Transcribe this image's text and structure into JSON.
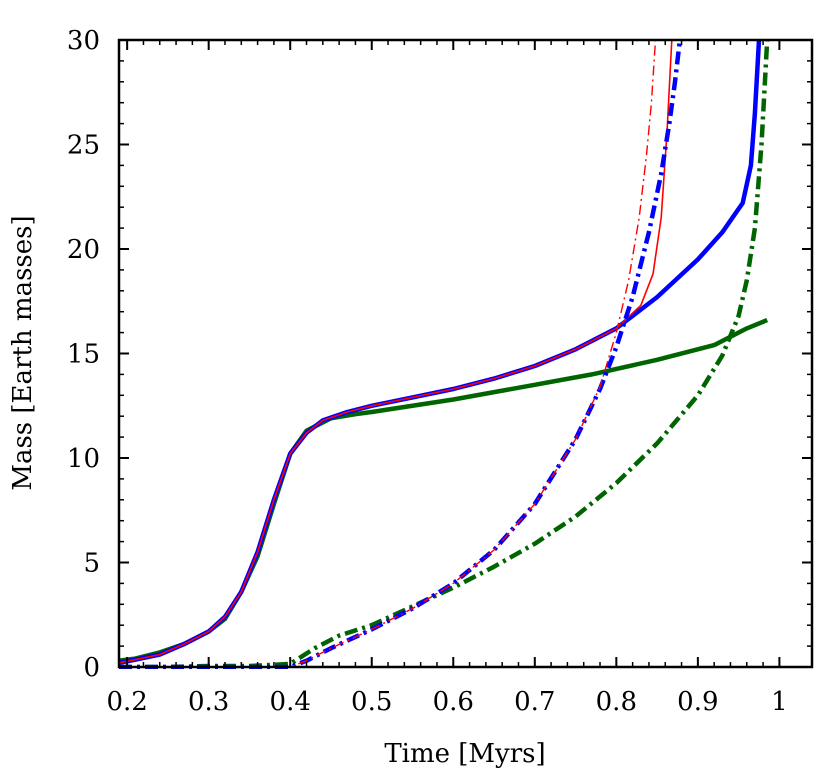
{
  "chart_data": {
    "type": "line",
    "title": "",
    "xlabel": "Time [Myrs]",
    "ylabel": "Mass [Earth masses]",
    "xlim": [
      0.19,
      1.04
    ],
    "ylim": [
      0,
      30
    ],
    "x_ticks": [
      0.2,
      0.3,
      0.4,
      0.5,
      0.6,
      0.7,
      0.8,
      0.9,
      1
    ],
    "x_tick_labels": [
      "0.2",
      "0.3",
      "0.4",
      "0.5",
      "0.6",
      "0.7",
      "0.8",
      "0.9",
      "1"
    ],
    "y_ticks": [
      0,
      5,
      10,
      15,
      20,
      25,
      30
    ],
    "y_tick_labels": [
      "0",
      "5",
      "10",
      "15",
      "20",
      "25",
      "30"
    ],
    "grid": false,
    "series": [
      {
        "style": "solid-thick",
        "color": "#006400",
        "x": [
          0.19,
          0.21,
          0.24,
          0.27,
          0.3,
          0.32,
          0.34,
          0.36,
          0.38,
          0.4,
          0.42,
          0.45,
          0.48,
          0.5,
          0.6,
          0.7,
          0.77,
          0.85,
          0.92,
          0.96,
          0.985
        ],
        "y": [
          0.3,
          0.4,
          0.7,
          1.1,
          1.7,
          2.3,
          3.6,
          5.3,
          7.8,
          10.2,
          11.3,
          11.9,
          12.1,
          12.2,
          12.8,
          13.5,
          14.0,
          14.7,
          15.4,
          16.2,
          16.6
        ]
      },
      {
        "style": "solid-thick",
        "color": "#0000ff",
        "x": [
          0.19,
          0.21,
          0.24,
          0.27,
          0.3,
          0.32,
          0.34,
          0.36,
          0.38,
          0.4,
          0.42,
          0.44,
          0.47,
          0.5,
          0.55,
          0.6,
          0.65,
          0.7,
          0.75,
          0.8,
          0.85,
          0.9,
          0.93,
          0.955,
          0.965,
          0.97,
          0.975
        ],
        "y": [
          0.2,
          0.35,
          0.6,
          1.1,
          1.7,
          2.4,
          3.6,
          5.5,
          8.0,
          10.2,
          11.2,
          11.8,
          12.2,
          12.5,
          12.9,
          13.3,
          13.8,
          14.4,
          15.2,
          16.2,
          17.7,
          19.5,
          20.8,
          22.2,
          24.0,
          26.5,
          30.0
        ]
      },
      {
        "style": "solid-thin",
        "color": "#ff0000",
        "x": [
          0.19,
          0.21,
          0.24,
          0.27,
          0.3,
          0.32,
          0.34,
          0.36,
          0.38,
          0.4,
          0.42,
          0.44,
          0.47,
          0.5,
          0.55,
          0.6,
          0.65,
          0.7,
          0.75,
          0.8,
          0.83,
          0.845,
          0.855,
          0.862,
          0.868
        ],
        "y": [
          0.2,
          0.35,
          0.6,
          1.1,
          1.7,
          2.4,
          3.6,
          5.5,
          8.0,
          10.2,
          11.2,
          11.8,
          12.2,
          12.5,
          12.9,
          13.3,
          13.8,
          14.4,
          15.2,
          16.2,
          17.3,
          18.8,
          21.5,
          25.5,
          30.0
        ]
      },
      {
        "style": "dashdot-thick",
        "color": "#006400",
        "x": [
          0.19,
          0.25,
          0.3,
          0.35,
          0.4,
          0.43,
          0.46,
          0.5,
          0.55,
          0.6,
          0.65,
          0.7,
          0.75,
          0.8,
          0.85,
          0.9,
          0.93,
          0.95,
          0.96,
          0.97,
          0.978,
          0.985
        ],
        "y": [
          0.0,
          0.0,
          0.05,
          0.05,
          0.15,
          0.9,
          1.5,
          2.0,
          2.9,
          3.8,
          4.8,
          5.9,
          7.2,
          8.8,
          10.7,
          13.0,
          14.9,
          16.8,
          18.5,
          21.0,
          25.0,
          30.0
        ]
      },
      {
        "style": "dashdot-thick",
        "color": "#0000ff",
        "x": [
          0.19,
          0.3,
          0.4,
          0.42,
          0.45,
          0.5,
          0.55,
          0.6,
          0.65,
          0.7,
          0.75,
          0.78,
          0.8,
          0.82,
          0.84,
          0.855,
          0.865,
          0.872,
          0.878
        ],
        "y": [
          0.0,
          0.0,
          0.0,
          0.3,
          0.9,
          1.8,
          2.8,
          4.0,
          5.6,
          7.8,
          10.9,
          13.3,
          15.3,
          17.7,
          20.8,
          23.6,
          26.0,
          28.0,
          30.0
        ]
      },
      {
        "style": "dashdot-thin",
        "color": "#ff0000",
        "x": [
          0.19,
          0.3,
          0.4,
          0.42,
          0.45,
          0.5,
          0.55,
          0.6,
          0.65,
          0.7,
          0.75,
          0.78,
          0.8,
          0.815,
          0.828,
          0.837,
          0.843,
          0.848
        ],
        "y": [
          0.0,
          0.0,
          0.0,
          0.3,
          0.9,
          1.8,
          2.8,
          4.0,
          5.6,
          7.8,
          10.9,
          13.4,
          16.0,
          18.5,
          21.5,
          24.5,
          27.0,
          30.0
        ]
      }
    ]
  }
}
